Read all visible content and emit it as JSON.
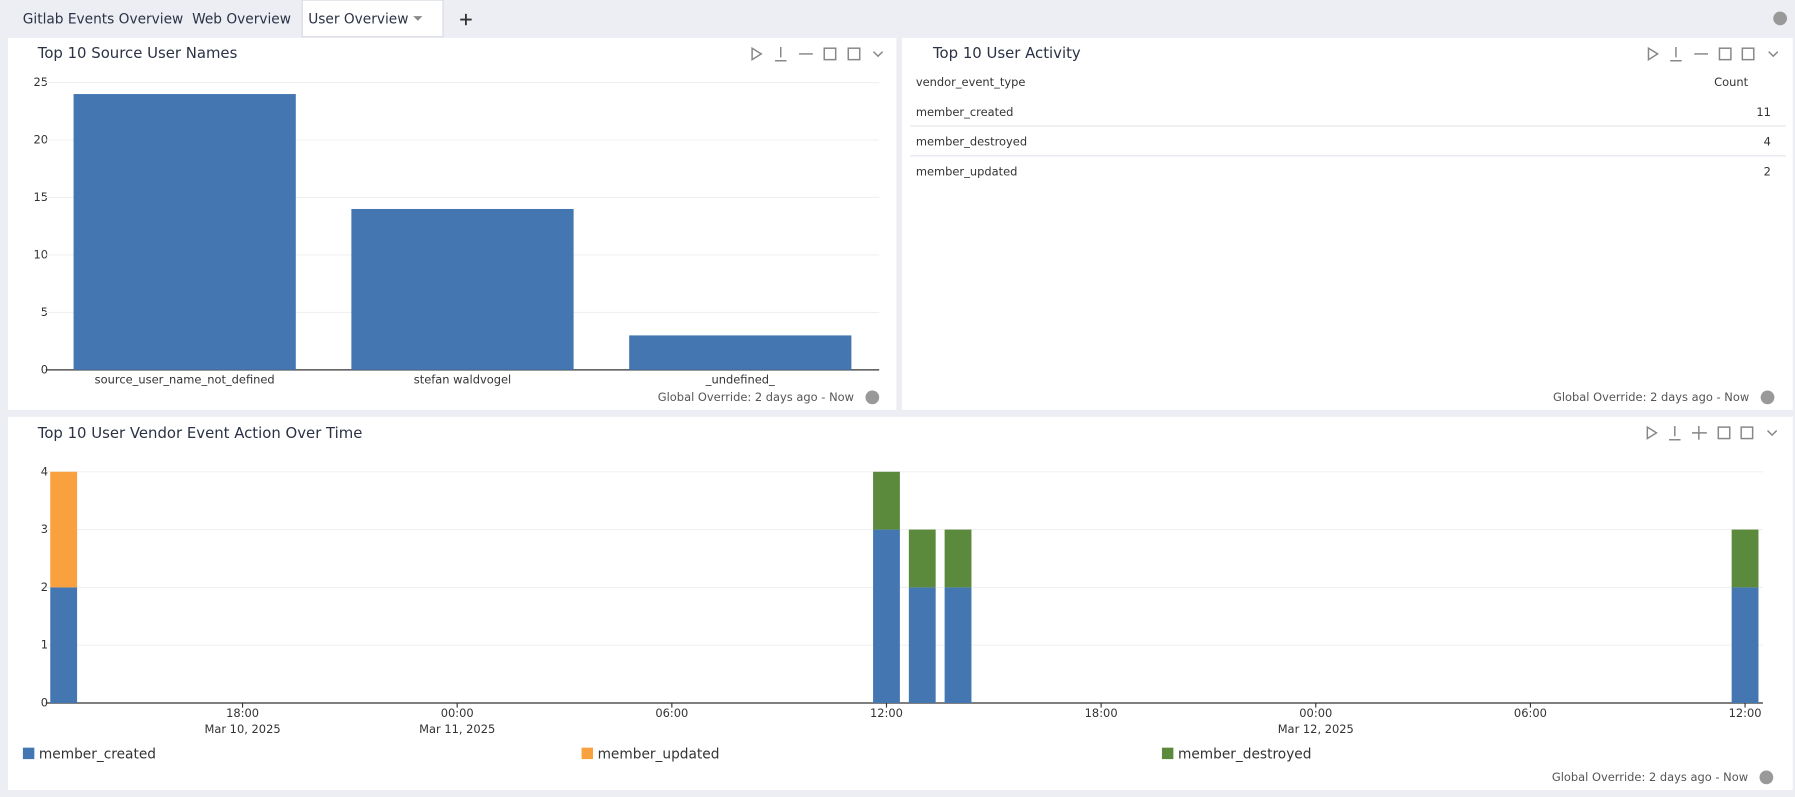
{
  "tabs": [
    "Gitlab Events Overview",
    "Web Overview",
    "User Overview"
  ],
  "panels": [
    {
      "title": "Top 10 Source User Names",
      "footer": "Global Override: 2 days ago - Now",
      "chart_data": {
        "type": "bar",
        "categories": [
          "source_user_name_not_defined",
          "stefan waldvogel",
          "_undefined_"
        ],
        "values": [
          24,
          14,
          3
        ],
        "color": "#4477b2",
        "ylim": [
          0,
          25
        ],
        "yticks": [
          0,
          5,
          10,
          15,
          20,
          25
        ],
        "grid": true
      }
    },
    {
      "title": "Top 10 User Activity",
      "footer": "Global Override: 2 days ago - Now",
      "table": {
        "columns": [
          "vendor_event_type",
          "Count"
        ],
        "rows": [
          [
            "member_created",
            11
          ],
          [
            "member_destroyed",
            4
          ],
          [
            "member_updated",
            2
          ]
        ]
      }
    },
    {
      "title": "Top 10 User Vendor Event Action Over Time",
      "footer": "Global Override: 2 days ago - Now",
      "chart_data": {
        "type": "stacked-bar",
        "x": [
          "2025-03-10T13:00",
          "2025-03-11T12:00",
          "2025-03-11T13:00",
          "2025-03-11T14:00",
          "2025-03-12T12:00"
        ],
        "series": [
          {
            "name": "member_created",
            "color": "#4477b2",
            "values": [
              2,
              3,
              2,
              2,
              2
            ]
          },
          {
            "name": "member_updated",
            "color": "#f9a03f",
            "values": [
              2,
              null,
              null,
              null,
              null
            ]
          },
          {
            "name": "member_destroyed",
            "color": "#5b8a3c",
            "values": [
              null,
              1,
              1,
              1,
              1
            ]
          }
        ],
        "xlim": [
          "2025-03-10T12:30",
          "2025-03-12T12:30"
        ],
        "xticks": [
          {
            "value": "2025-03-10T18:00",
            "label": "18:00",
            "date_label": "Mar 10, 2025"
          },
          {
            "value": "2025-03-11T00:00",
            "label": "00:00",
            "date_label": "Mar 11, 2025"
          },
          {
            "value": "2025-03-11T06:00",
            "label": "06:00"
          },
          {
            "value": "2025-03-11T12:00",
            "label": "12:00"
          },
          {
            "value": "2025-03-11T18:00",
            "label": "18:00"
          },
          {
            "value": "2025-03-12T00:00",
            "label": "00:00",
            "date_label": "Mar 12, 2025"
          },
          {
            "value": "2025-03-12T06:00",
            "label": "06:00"
          },
          {
            "value": "2025-03-12T12:00",
            "label": "12:00"
          }
        ],
        "ylim": [
          0,
          4
        ],
        "yticks": [
          0,
          1,
          2,
          3,
          4
        ],
        "grid": true,
        "legend": "bottom"
      }
    }
  ]
}
